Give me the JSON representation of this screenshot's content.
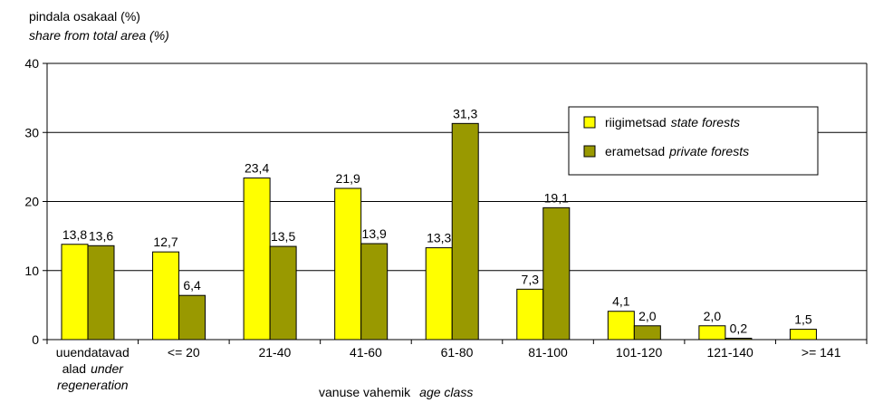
{
  "chart_data": {
    "type": "bar",
    "ylabel_line1": "pindala osakaal (%)",
    "ylabel_line2": "share from total area (%)",
    "xlabel_main": "vanuse vahemik",
    "xlabel_italic": "age class",
    "ylim": [
      0,
      40
    ],
    "yticks": [
      "0",
      "10",
      "20",
      "30",
      "40"
    ],
    "grid": true,
    "legend_position": "top-right",
    "categories": [
      "uuendatavad alad under regeneration",
      "<= 20",
      "21-40",
      "41-60",
      "61-80",
      "81-100",
      "101-120",
      "121-140",
      ">= 141"
    ],
    "category_label_lines": [
      [
        {
          "text": "uuendatavad",
          "italic": false
        }
      ],
      [
        {
          "text": "alad",
          "italic": false
        },
        {
          "text": "under",
          "italic": true
        }
      ],
      [
        {
          "text": "regeneration",
          "italic": true
        }
      ]
    ],
    "series": [
      {
        "name": "riigimetsad",
        "name_italic": "state forests",
        "color": "#FFFF00",
        "values": [
          13.8,
          12.7,
          23.4,
          21.9,
          13.3,
          7.3,
          4.1,
          2.0,
          1.5
        ],
        "labels": [
          "13,8",
          "12,7",
          "23,4",
          "21,9",
          "13,3",
          "7,3",
          "4,1",
          "2,0",
          "1,5"
        ]
      },
      {
        "name": "erametsad",
        "name_italic": "private forests",
        "color": "#999900",
        "values": [
          13.6,
          6.4,
          13.5,
          13.9,
          31.3,
          19.1,
          2.0,
          0.2,
          null
        ],
        "labels": [
          "13,6",
          "6,4",
          "13,5",
          "13,9",
          "31,3",
          "19,1",
          "2,0",
          "0,2",
          ""
        ]
      }
    ]
  }
}
